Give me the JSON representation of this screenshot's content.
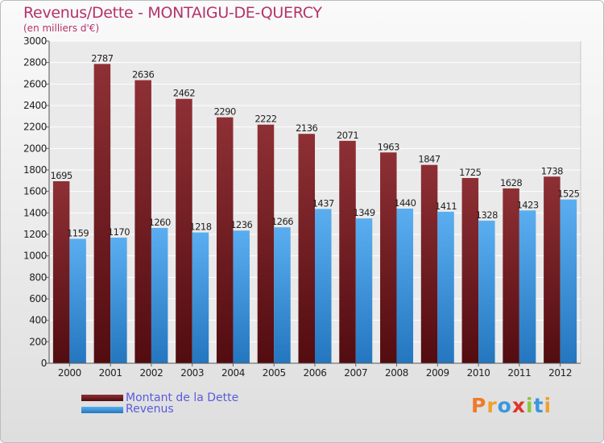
{
  "chart_data": {
    "type": "bar",
    "title": "Revenus/Dette - MONTAIGU-DE-QUERCY",
    "subtitle": "(en milliers d'€)",
    "categories": [
      "2000",
      "2001",
      "2002",
      "2003",
      "2004",
      "2005",
      "2006",
      "2007",
      "2008",
      "2009",
      "2010",
      "2011",
      "2012"
    ],
    "series": [
      {
        "name": "Montant de la Dette",
        "color": "#7a1f22",
        "values": [
          1695,
          2787,
          2636,
          2462,
          2290,
          2222,
          2136,
          2071,
          1963,
          1847,
          1725,
          1628,
          1738
        ]
      },
      {
        "name": "Revenus",
        "color": "#3a97dd",
        "values": [
          1159,
          1170,
          1260,
          1218,
          1236,
          1266,
          1437,
          1349,
          1440,
          1411,
          1328,
          1423,
          1525
        ]
      }
    ],
    "ylim": [
      0,
      3000
    ],
    "yticks": [
      0,
      200,
      400,
      600,
      800,
      1000,
      1200,
      1400,
      1600,
      1800,
      2000,
      2200,
      2400,
      2600,
      2800,
      3000
    ],
    "grid": true,
    "legend_placement": "bottom-left"
  },
  "branding": {
    "letters": [
      "P",
      "r",
      "o",
      "x",
      "i",
      "t",
      "i"
    ],
    "colors": [
      "#f07a2a",
      "#f0a030",
      "#3a97dd",
      "#e0352b",
      "#8cc63f",
      "#3a97dd",
      "#f0a030"
    ]
  }
}
